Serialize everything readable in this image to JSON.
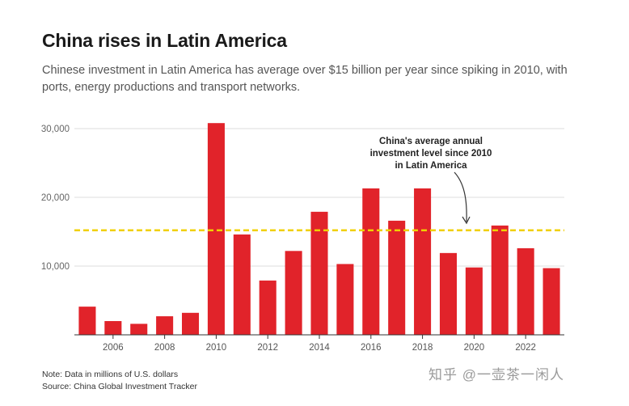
{
  "chart_data": {
    "type": "bar",
    "title": "China rises in Latin America",
    "subtitle": "Chinese investment in Latin America has average over $15 billion per year since spiking in 2010, with ports, energy productions and transport networks.",
    "xlabel": "",
    "ylabel": "",
    "ylim": [
      0,
      30000
    ],
    "ytick_values": [
      10000,
      20000,
      30000
    ],
    "ytick_labels": [
      "10,000",
      "20,000",
      "30,000"
    ],
    "categories": [
      "2005",
      "2006",
      "2007",
      "2008",
      "2009",
      "2010",
      "2011",
      "2012",
      "2013",
      "2014",
      "2015",
      "2016",
      "2017",
      "2018",
      "2019",
      "2020",
      "2021",
      "2022",
      "2023"
    ],
    "xtick_labels": [
      "2006",
      "2008",
      "2010",
      "2012",
      "2014",
      "2016",
      "2018",
      "2020",
      "2022"
    ],
    "values": [
      4100,
      2000,
      1600,
      2700,
      3200,
      30800,
      14600,
      7900,
      12200,
      17900,
      10300,
      21300,
      16600,
      21300,
      11900,
      9800,
      15900,
      12600,
      9700
    ],
    "bar_color": "#e1232a",
    "reference_line": {
      "value": 15200,
      "color": "#f0d000",
      "style": "dashed",
      "label_lines": [
        "China's average annual",
        "investment level since 2010",
        "in Latin America"
      ]
    },
    "grid": true,
    "legend": "none"
  },
  "footer": {
    "note": "Note: Data in millions of U.S. dollars",
    "source": "Source: China Global Investment Tracker"
  },
  "watermark": "知乎 @一壶茶一闲人"
}
